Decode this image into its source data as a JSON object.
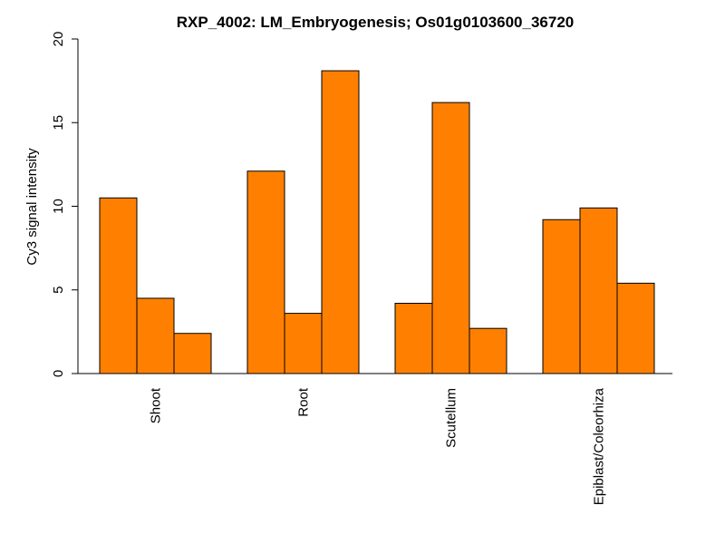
{
  "chart_data": {
    "type": "bar",
    "title": "RXP_4002: LM_Embryogenesis; Os01g0103600_36720",
    "xlabel": "",
    "ylabel": "Cy3 signal intensity",
    "categories": [
      "Shoot",
      "Root",
      "Scutellum",
      "Epiblast/Coleorhiza"
    ],
    "series": [
      {
        "values": [
          10.5,
          12.1,
          4.2,
          9.2
        ]
      },
      {
        "values": [
          4.5,
          3.6,
          16.2,
          9.9
        ]
      },
      {
        "values": [
          2.4,
          18.1,
          2.7,
          5.4
        ]
      }
    ],
    "ylim": [
      0,
      20
    ],
    "yticks": [
      "0",
      "5",
      "10",
      "15",
      "20"
    ],
    "grid": false,
    "legend": "none",
    "bar_color": "#FF8000"
  }
}
